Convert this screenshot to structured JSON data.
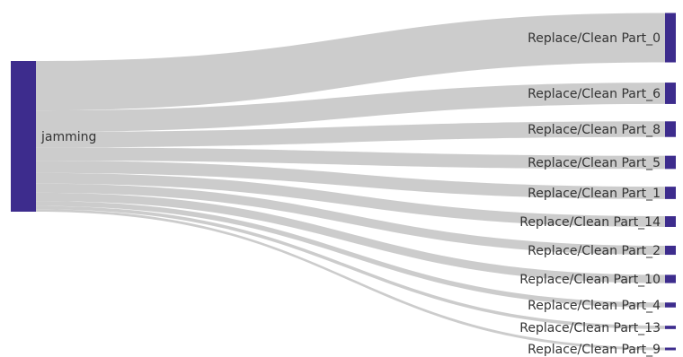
{
  "diagram": {
    "type": "sankey",
    "colors": {
      "node": "#3d2c8d",
      "link": "#c9c9c9",
      "label": "#333333",
      "background": "#ffffff"
    },
    "source": {
      "label": "jamming"
    },
    "targets": [
      {
        "label": "Replace/Clean Part_0",
        "weight": 60
      },
      {
        "label": "Replace/Clean Part_6",
        "weight": 26
      },
      {
        "label": "Replace/Clean Part_8",
        "weight": 19
      },
      {
        "label": "Replace/Clean Part_5",
        "weight": 16
      },
      {
        "label": "Replace/Clean Part_1",
        "weight": 15
      },
      {
        "label": "Replace/Clean Part_14",
        "weight": 13
      },
      {
        "label": "Replace/Clean Part_2",
        "weight": 11
      },
      {
        "label": "Replace/Clean Part_10",
        "weight": 10
      },
      {
        "label": "Replace/Clean Part_4",
        "weight": 6
      },
      {
        "label": "Replace/Clean Part_13",
        "weight": 4
      },
      {
        "label": "Replace/Clean Part_9",
        "weight": 3
      }
    ]
  }
}
